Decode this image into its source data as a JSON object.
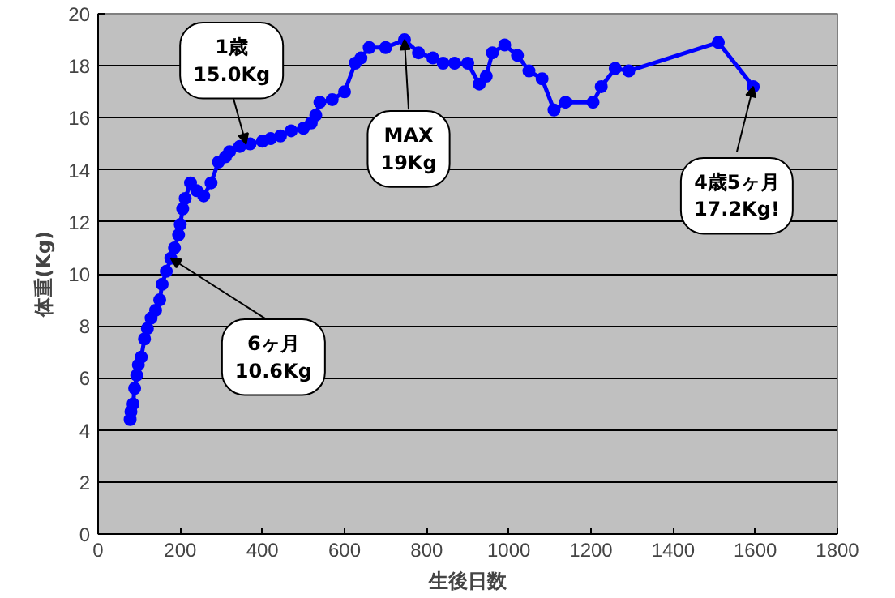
{
  "chart_data": {
    "type": "line",
    "xlabel": "生後日数",
    "ylabel": "体重(Kg)",
    "xlim": [
      0,
      1800
    ],
    "xticks": [
      0,
      200,
      400,
      600,
      800,
      1000,
      1200,
      1400,
      1600,
      1800
    ],
    "ylim": [
      0,
      20
    ],
    "yticks": [
      0,
      2,
      4,
      6,
      8,
      10,
      12,
      14,
      16,
      18,
      20
    ],
    "grid": "y",
    "marker": "circle",
    "line_style": "solid",
    "series": [
      {
        "color": "#0000ff",
        "x": [
          78,
          80,
          85,
          89,
          94,
          98,
          105,
          113,
          120,
          129,
          140,
          150,
          156,
          166,
          177,
          186,
          196,
          200,
          206,
          212,
          225,
          240,
          257,
          275,
          293,
          310,
          320,
          345,
          370,
          400,
          420,
          444,
          470,
          500,
          519,
          530,
          540,
          570,
          600,
          626,
          640,
          660,
          700,
          746,
          780,
          815,
          840,
          868,
          900,
          928,
          945,
          960,
          990,
          1021,
          1049,
          1081,
          1110,
          1138,
          1205,
          1225,
          1259,
          1292,
          1510,
          1595
        ],
        "values": [
          4.4,
          4.7,
          5.0,
          5.6,
          6.1,
          6.5,
          6.8,
          7.5,
          7.9,
          8.3,
          8.6,
          9.0,
          9.6,
          10.1,
          10.6,
          11.0,
          11.5,
          11.9,
          12.5,
          12.9,
          13.5,
          13.2,
          13.0,
          13.5,
          14.3,
          14.5,
          14.7,
          14.9,
          15.0,
          15.1,
          15.2,
          15.3,
          15.5,
          15.6,
          15.8,
          16.1,
          16.6,
          16.7,
          17.0,
          18.1,
          18.3,
          18.7,
          18.7,
          19.0,
          18.5,
          18.3,
          18.1,
          18.1,
          18.1,
          17.3,
          17.6,
          18.5,
          18.8,
          18.4,
          17.8,
          17.5,
          16.3,
          16.6,
          16.6,
          17.2,
          17.9,
          17.8,
          18.9,
          17.2
        ]
      }
    ],
    "annotations": [
      {
        "text": "1歳\n15.0Kg",
        "x": 360,
        "y": 15.0
      },
      {
        "text": "6ヶ月\n10.6Kg",
        "x": 177,
        "y": 10.6
      },
      {
        "text": "MAX\n19Kg",
        "x": 746,
        "y": 19.0
      },
      {
        "text": "4歳5ヶ月\n17.2Kg!",
        "x": 1595,
        "y": 17.2
      }
    ]
  }
}
